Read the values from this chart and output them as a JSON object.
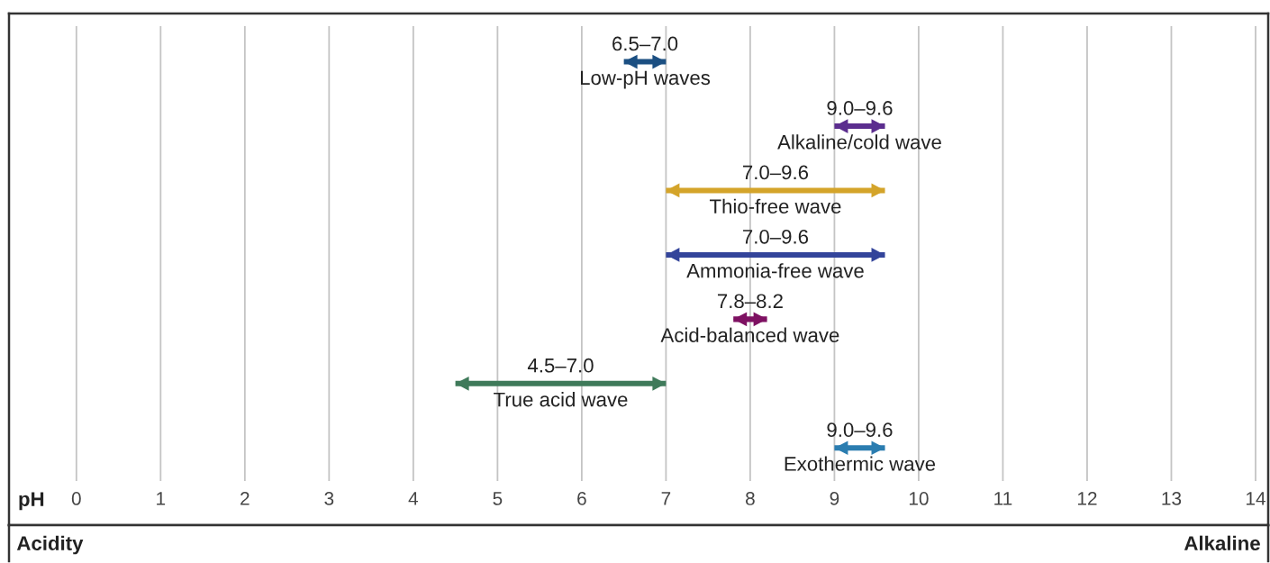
{
  "chart_data": {
    "type": "bar",
    "orientation": "horizontal",
    "xlabel": "pH",
    "categories": [
      "Low-pH waves",
      "Alkaline/cold wave",
      "Thio-free wave",
      "Ammonia-free wave",
      "Acid-balanced wave",
      "True acid wave",
      "Exothermic wave"
    ],
    "base": [
      6.5,
      9.0,
      7.0,
      7.0,
      7.8,
      4.5,
      9.0
    ],
    "values": [
      0.5,
      0.6,
      2.6,
      2.6,
      0.4,
      2.5,
      0.6
    ],
    "value_labels": [
      "6.5–7.0",
      "9.0–9.6",
      "7.0–9.6",
      "7.0–9.6",
      "7.8–8.2",
      "4.5–7.0",
      "9.0–9.6"
    ],
    "colors": [
      "#1b4f82",
      "#5b2d8e",
      "#d4a42a",
      "#33449a",
      "#7e1162",
      "#3f7a5a",
      "#2b7db0"
    ],
    "xlim": [
      -0.8,
      14.15
    ],
    "xticks": [
      0,
      1,
      2,
      3,
      4,
      5,
      6,
      7,
      8,
      9,
      10,
      11,
      12,
      13,
      14
    ],
    "grid": "x",
    "tick_labels": "x",
    "annotations": [
      "Acidity",
      "Alkaline"
    ]
  }
}
